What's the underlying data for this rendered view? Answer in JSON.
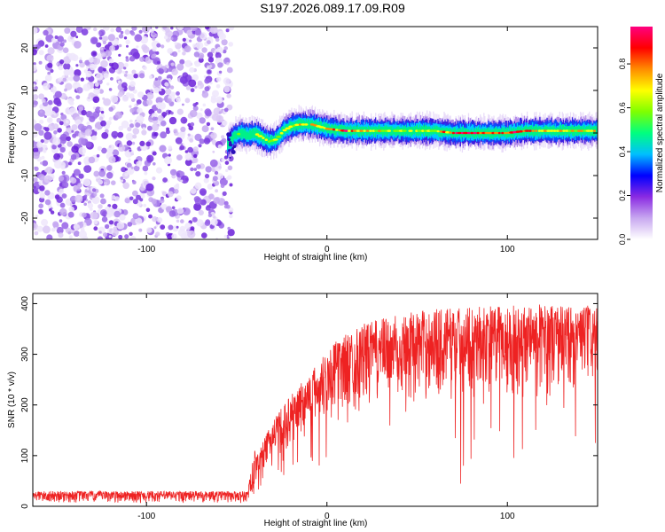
{
  "title": "S197.2026.089.17.09.R09",
  "colors": {
    "snr_line": "#ee2222",
    "noise_purple": "#8a3cf0",
    "frame": "#000000"
  },
  "colorbar": {
    "label": "Normalized spectral amplitude",
    "range": [
      0.0,
      0.97
    ],
    "ticks": [
      "0.0",
      "0.2",
      "0.4",
      "0.6",
      "0.8"
    ],
    "tick_values": [
      0.0,
      0.2,
      0.4,
      0.6,
      0.8
    ],
    "colors": [
      "#ffffff",
      "#c8a8f0",
      "#8a2be2",
      "#0000ff",
      "#00bfff",
      "#00ff7f",
      "#7fff00",
      "#ffff00",
      "#ff8c00",
      "#ff0000",
      "#ff0080"
    ]
  },
  "chart_data": [
    {
      "type": "heatmap",
      "name": "spectrogram",
      "xlabel": "Height of straight line (km)",
      "ylabel": "Frequency (Hz)",
      "xlim": [
        -163,
        150
      ],
      "ylim": [
        -25,
        25
      ],
      "x_tick_values": [
        -100,
        0,
        100
      ],
      "x_tick_labels": [
        "-100",
        "0",
        "100"
      ],
      "y_tick_values": [
        -20,
        -10,
        0,
        10,
        20
      ],
      "y_tick_labels": [
        "-20",
        "-10",
        "0",
        "10",
        "20"
      ],
      "noise_region_x": [
        -163,
        -55
      ],
      "signal_track": {
        "x": [
          -55,
          -52,
          -48,
          -44,
          -40,
          -36,
          -32,
          -28,
          -24,
          -20,
          -16,
          -12,
          -8,
          -4,
          0,
          10,
          20,
          30,
          40,
          50,
          60,
          70,
          80,
          90,
          100,
          110,
          120,
          130,
          140,
          150
        ],
        "freq_hz": [
          -3,
          -1,
          0,
          -0.5,
          0,
          -1,
          -2,
          -1.5,
          0.5,
          1.5,
          2,
          2,
          2,
          1.5,
          1,
          0.5,
          0.5,
          0.5,
          0.5,
          0.5,
          0.5,
          0,
          0,
          0,
          0,
          0.5,
          0.5,
          0.5,
          0.5,
          0.5
        ],
        "amplitude": [
          0.35,
          0.45,
          0.55,
          0.5,
          0.55,
          0.6,
          0.65,
          0.6,
          0.55,
          0.6,
          0.65,
          0.65,
          0.65,
          0.7,
          0.7,
          0.85,
          0.7,
          0.65,
          0.65,
          0.6,
          0.65,
          0.85,
          0.9,
          0.85,
          0.8,
          0.85,
          0.75,
          0.7,
          0.7,
          0.7
        ]
      }
    },
    {
      "type": "line",
      "name": "snr",
      "xlabel": "Height of straight line (km)",
      "ylabel": "SNR (10 * v/v)",
      "xlim": [
        -163,
        150
      ],
      "ylim": [
        0,
        420
      ],
      "x_tick_values": [
        -100,
        0,
        100
      ],
      "x_tick_labels": [
        "-100",
        "0",
        "100"
      ],
      "y_tick_values": [
        0,
        100,
        200,
        300,
        400
      ],
      "y_tick_labels": [
        "0",
        "100",
        "200",
        "300",
        "400"
      ],
      "envelope": {
        "x": [
          -163,
          -44,
          -40,
          -35,
          -30,
          -20,
          -10,
          0,
          10,
          20,
          30,
          40,
          60,
          80,
          100,
          120,
          150
        ],
        "upper": [
          30,
          30,
          110,
          130,
          170,
          220,
          260,
          310,
          340,
          360,
          370,
          380,
          390,
          395,
          395,
          400,
          395
        ],
        "lower": [
          5,
          5,
          30,
          60,
          80,
          110,
          130,
          150,
          170,
          180,
          190,
          200,
          200,
          210,
          200,
          210,
          220
        ],
        "min_dips": [
          3,
          3,
          20,
          40,
          50,
          60,
          70,
          80,
          60,
          80,
          70,
          60,
          50,
          40,
          30,
          50,
          100
        ]
      }
    }
  ]
}
